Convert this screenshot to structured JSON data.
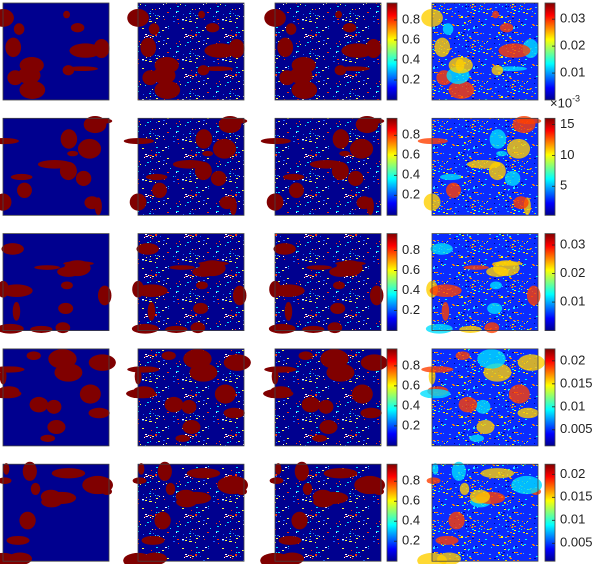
{
  "rows": [
    {
      "colorbar_left": {
        "lim": [
          0,
          0.97
        ],
        "ticks": [
          0.2,
          0.4,
          0.6,
          0.8
        ]
      },
      "colorbar_right": {
        "lim": [
          0,
          0.036
        ],
        "ticks": [
          0.01,
          0.02,
          0.03
        ]
      }
    },
    {
      "colorbar_left": {
        "lim": [
          0,
          0.97
        ],
        "ticks": [
          0.2,
          0.4,
          0.6,
          0.8
        ]
      },
      "colorbar_right": {
        "lim": [
          0.3,
          16
        ],
        "ticks": [
          5,
          10,
          15
        ],
        "exponent_base": "×10",
        "exponent": "-3"
      }
    },
    {
      "colorbar_left": {
        "lim": [
          0,
          0.97
        ],
        "ticks": [
          0.2,
          0.4,
          0.6,
          0.8
        ]
      },
      "colorbar_right": {
        "lim": [
          0,
          0.034
        ],
        "ticks": [
          0.01,
          0.02,
          0.03
        ]
      }
    },
    {
      "colorbar_left": {
        "lim": [
          0,
          0.97
        ],
        "ticks": [
          0.2,
          0.4,
          0.6,
          0.8
        ]
      },
      "colorbar_right": {
        "lim": [
          0.0015,
          0.0226
        ],
        "ticks": [
          0.005,
          0.01,
          0.015,
          0.02
        ]
      }
    },
    {
      "colorbar_left": {
        "lim": [
          0,
          0.97
        ],
        "ticks": [
          0.2,
          0.4,
          0.6,
          0.8
        ]
      },
      "colorbar_right": {
        "lim": [
          0.0011,
          0.0222
        ],
        "ticks": [
          0.005,
          0.01,
          0.015,
          0.02
        ]
      }
    }
  ]
}
